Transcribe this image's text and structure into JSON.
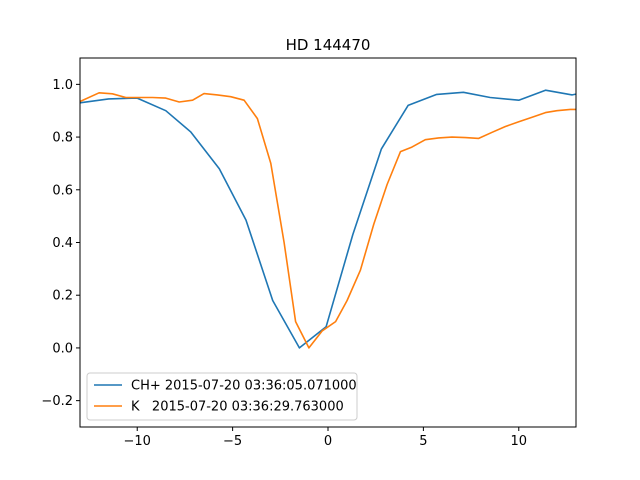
{
  "chart_data": {
    "type": "line",
    "title": "HD 144470",
    "xlabel": "",
    "ylabel": "",
    "xlim": [
      -13,
      13
    ],
    "ylim": [
      -0.3,
      1.1
    ],
    "grid": false,
    "legend_position": "lower-left",
    "xticks": [
      -10,
      -5,
      0,
      5,
      10
    ],
    "xtick_labels": [
      "−10",
      "−5",
      "0",
      "5",
      "10"
    ],
    "yticks": [
      -0.2,
      0.0,
      0.2,
      0.4,
      0.6,
      0.8,
      1.0
    ],
    "ytick_labels": [
      "−0.2",
      "0.0",
      "0.2",
      "0.4",
      "0.6",
      "0.8",
      "1.0"
    ],
    "series": [
      {
        "name": "CH+ 2015-07-20 03:36:05.071000",
        "color": "#1f77b4",
        "x": [
          -13.0,
          -11.5,
          -10.0,
          -8.5,
          -7.2,
          -5.7,
          -4.3,
          -2.9,
          -1.5,
          -0.1,
          1.3,
          2.8,
          4.2,
          5.7,
          7.1,
          8.5,
          10.0,
          11.4,
          12.8,
          13.0
        ],
        "y": [
          0.93,
          0.945,
          0.948,
          0.9,
          0.82,
          0.68,
          0.485,
          0.18,
          0.0,
          0.08,
          0.43,
          0.755,
          0.92,
          0.962,
          0.97,
          0.95,
          0.94,
          0.978,
          0.96,
          0.963
        ]
      },
      {
        "name": "K   2015-07-20 03:36:29.763000",
        "color": "#ff7f0e",
        "x": [
          -13.0,
          -12.0,
          -11.3,
          -10.6,
          -9.9,
          -9.2,
          -8.5,
          -7.8,
          -7.1,
          -6.5,
          -5.8,
          -5.1,
          -4.4,
          -3.7,
          -3.0,
          -2.3,
          -1.7,
          -1.0,
          -0.3,
          0.4,
          1.0,
          1.7,
          2.4,
          3.1,
          3.8,
          4.4,
          5.1,
          5.8,
          6.5,
          7.2,
          7.9,
          8.6,
          9.3,
          10.0,
          10.7,
          11.4,
          12.0,
          12.7,
          13.0
        ],
        "y": [
          0.935,
          0.968,
          0.964,
          0.95,
          0.95,
          0.95,
          0.948,
          0.933,
          0.94,
          0.965,
          0.96,
          0.953,
          0.94,
          0.87,
          0.7,
          0.4,
          0.1,
          0.0,
          0.065,
          0.1,
          0.18,
          0.295,
          0.47,
          0.62,
          0.745,
          0.762,
          0.79,
          0.797,
          0.8,
          0.798,
          0.795,
          0.818,
          0.84,
          0.858,
          0.875,
          0.893,
          0.9,
          0.905,
          0.905
        ]
      }
    ]
  }
}
